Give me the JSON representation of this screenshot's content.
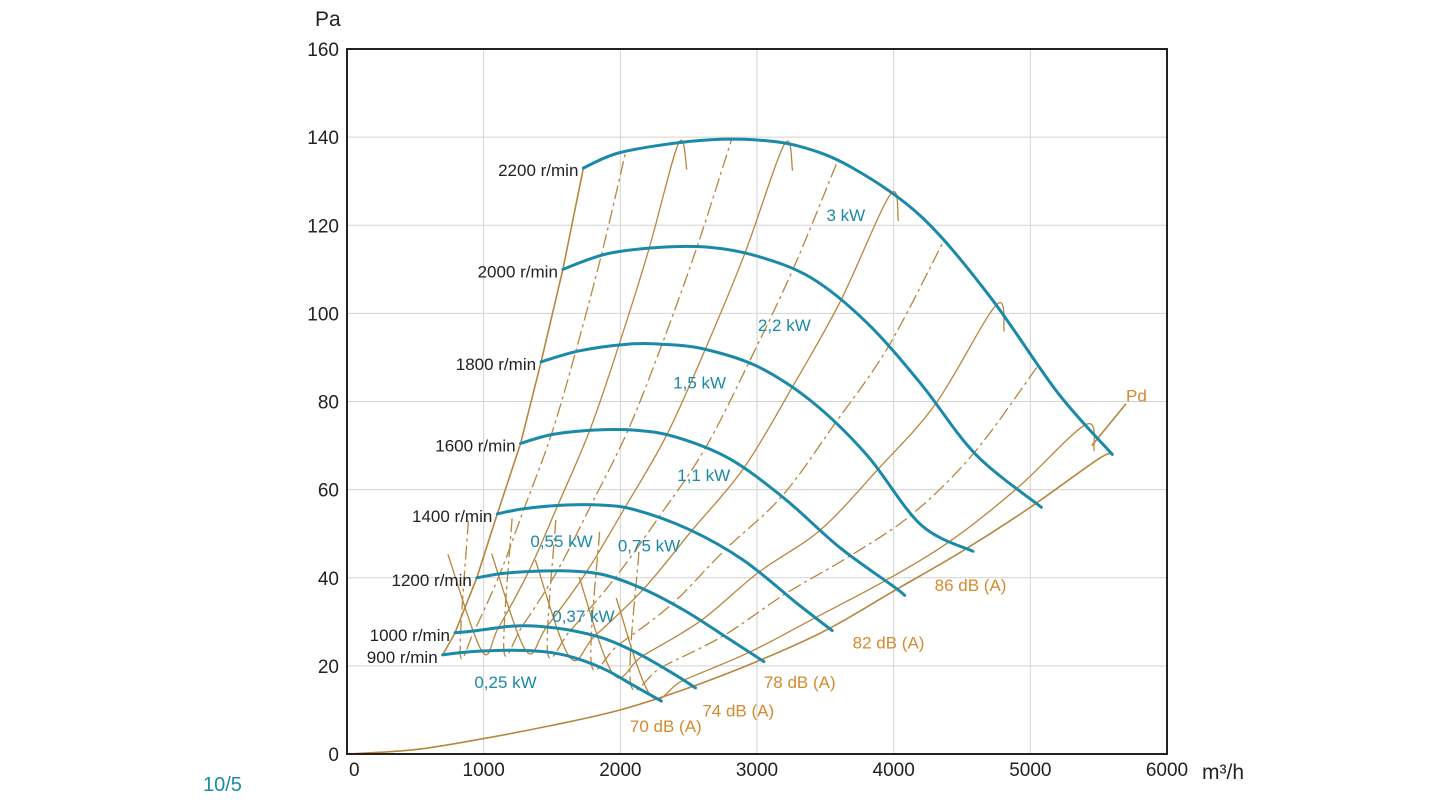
{
  "page_ref": "10/5",
  "colors": {
    "speed_curve": "#1a8aa8",
    "power_label": "#1a8aa8",
    "noise_curve": "#b8863c",
    "noise_label": "#d48a2e",
    "grid": "#d2d2d2",
    "axis": "#222222"
  },
  "chart_data": {
    "type": "line",
    "title": "",
    "xlabel": "m³/h",
    "ylabel": "Pa",
    "xlim": [
      0,
      6000
    ],
    "ylim": [
      0,
      160
    ],
    "x_ticks": [
      0,
      1000,
      2000,
      3000,
      4000,
      5000,
      6000
    ],
    "y_ticks": [
      0,
      20,
      40,
      60,
      80,
      100,
      120,
      140,
      160
    ],
    "grid": true,
    "speed_curves": [
      {
        "name": "2200 r/min",
        "points": [
          [
            1730,
            133
          ],
          [
            2000,
            136.5
          ],
          [
            2500,
            139
          ],
          [
            2900,
            139.5
          ],
          [
            3300,
            138
          ],
          [
            3700,
            133
          ],
          [
            4200,
            122
          ],
          [
            4700,
            104
          ],
          [
            5200,
            82
          ],
          [
            5600,
            68
          ]
        ]
      },
      {
        "name": "2000 r/min",
        "points": [
          [
            1580,
            110
          ],
          [
            1900,
            113.5
          ],
          [
            2300,
            115
          ],
          [
            2650,
            115
          ],
          [
            3000,
            113
          ],
          [
            3400,
            108
          ],
          [
            3800,
            98
          ],
          [
            4200,
            84
          ],
          [
            4600,
            68
          ],
          [
            5080,
            56
          ]
        ]
      },
      {
        "name": "1800 r/min",
        "points": [
          [
            1420,
            89
          ],
          [
            1700,
            91.5
          ],
          [
            2050,
            93
          ],
          [
            2300,
            93
          ],
          [
            2600,
            92
          ],
          [
            3000,
            88
          ],
          [
            3400,
            80
          ],
          [
            3800,
            68
          ],
          [
            4200,
            52
          ],
          [
            4580,
            46
          ]
        ]
      },
      {
        "name": "1600 r/min",
        "points": [
          [
            1270,
            70.5
          ],
          [
            1500,
            72.5
          ],
          [
            1800,
            73.5
          ],
          [
            2100,
            73.5
          ],
          [
            2400,
            72
          ],
          [
            2800,
            67
          ],
          [
            3200,
            58
          ],
          [
            3600,
            47
          ],
          [
            4000,
            38
          ],
          [
            4080,
            36
          ]
        ]
      },
      {
        "name": "1400 r/min",
        "points": [
          [
            1100,
            54.5
          ],
          [
            1300,
            55.7
          ],
          [
            1600,
            56.5
          ],
          [
            1850,
            56.5
          ],
          [
            2100,
            55.5
          ],
          [
            2500,
            51
          ],
          [
            2900,
            44
          ],
          [
            3300,
            34
          ],
          [
            3550,
            28
          ]
        ]
      },
      {
        "name": "1200 r/min",
        "points": [
          [
            950,
            40
          ],
          [
            1150,
            41
          ],
          [
            1400,
            41.5
          ],
          [
            1650,
            41.5
          ],
          [
            1900,
            40.5
          ],
          [
            2200,
            37
          ],
          [
            2500,
            32
          ],
          [
            2800,
            26
          ],
          [
            3050,
            21
          ]
        ]
      },
      {
        "name": "1000 r/min",
        "points": [
          [
            790,
            27.5
          ],
          [
            950,
            28
          ],
          [
            1200,
            29
          ],
          [
            1400,
            29
          ],
          [
            1650,
            28
          ],
          [
            1900,
            26
          ],
          [
            2150,
            22.5
          ],
          [
            2400,
            18
          ],
          [
            2550,
            15
          ]
        ]
      },
      {
        "name": "900 r/min",
        "points": [
          [
            700,
            22.5
          ],
          [
            900,
            23.2
          ],
          [
            1100,
            23.5
          ],
          [
            1300,
            23.5
          ],
          [
            1500,
            23
          ],
          [
            1700,
            21.5
          ],
          [
            1900,
            19
          ],
          [
            2100,
            15.5
          ],
          [
            2300,
            12
          ]
        ]
      }
    ],
    "boundary_line": {
      "points": [
        [
          700,
          22.5
        ],
        [
          790,
          27.5
        ],
        [
          950,
          40
        ],
        [
          1100,
          54.5
        ],
        [
          1270,
          70.5
        ],
        [
          1420,
          89
        ],
        [
          1580,
          110
        ],
        [
          1730,
          133
        ]
      ]
    },
    "system_curve_pd": {
      "name": "Pd",
      "points": [
        [
          0,
          0
        ],
        [
          500,
          1
        ],
        [
          1000,
          3.5
        ],
        [
          1500,
          6.5
        ],
        [
          2000,
          10
        ],
        [
          2500,
          15
        ],
        [
          3000,
          21
        ],
        [
          3500,
          28
        ],
        [
          4000,
          37
        ],
        [
          4500,
          46
        ],
        [
          5000,
          56
        ],
        [
          5500,
          67
        ],
        [
          5600,
          68
        ]
      ]
    },
    "pd_leader": {
      "points": [
        [
          5500,
          71
        ],
        [
          5700,
          80
        ]
      ]
    },
    "power_labels": [
      {
        "text": "0,25 kW",
        "x": 1160,
        "y": 15
      },
      {
        "text": "0,37 kW",
        "x": 1730,
        "y": 30
      },
      {
        "text": "0,55 kW",
        "x": 1570,
        "y": 47
      },
      {
        "text": "0,75 kW",
        "x": 2210,
        "y": 46
      },
      {
        "text": "1,1 kW",
        "x": 2610,
        "y": 62
      },
      {
        "text": "1,5 kW",
        "x": 2580,
        "y": 83
      },
      {
        "text": "2,2 kW",
        "x": 3200,
        "y": 96
      },
      {
        "text": "3 kW",
        "x": 3650,
        "y": 121
      }
    ],
    "noise_labels": [
      {
        "text": "70 dB (A)",
        "x": 2070,
        "y": 5
      },
      {
        "text": "74 dB (A)",
        "x": 2600,
        "y": 8.5
      },
      {
        "text": "78 dB (A)",
        "x": 3050,
        "y": 15
      },
      {
        "text": "82 dB (A)",
        "x": 3700,
        "y": 24
      },
      {
        "text": "86 dB (A)",
        "x": 4300,
        "y": 37
      },
      {
        "text": "Pd",
        "x": 5700,
        "y": 80
      }
    ]
  }
}
